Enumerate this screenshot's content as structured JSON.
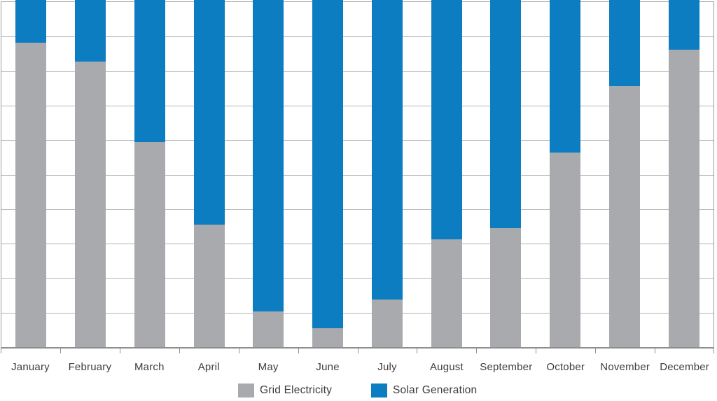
{
  "chart_data": {
    "type": "bar",
    "stacked": true,
    "percent_stacked": true,
    "title": "",
    "xlabel": "",
    "ylabel": "",
    "ylim": [
      0,
      100
    ],
    "grid_interval_percent": 10,
    "gridlines_visible": true,
    "y_axis_tick_labels_visible": false,
    "legend_position": "bottom",
    "categories": [
      "January",
      "February",
      "March",
      "April",
      "May",
      "June",
      "July",
      "August",
      "September",
      "October",
      "November",
      "December"
    ],
    "series": [
      {
        "name": "Grid Electricity",
        "color": "#a8aaad",
        "values": [
          87.8,
          82.3,
          59.0,
          35.2,
          10.2,
          5.5,
          13.8,
          31.1,
          34.3,
          56.0,
          75.2,
          85.6
        ]
      },
      {
        "name": "Solar Generation",
        "color": "#0d7dc2",
        "values": [
          12.2,
          17.7,
          41.0,
          64.8,
          89.8,
          94.5,
          86.2,
          68.9,
          65.7,
          44.0,
          24.8,
          14.4
        ]
      }
    ]
  },
  "colors": {
    "grid_series": "#a8aaad",
    "solar_series": "#0d7dc2",
    "gridline": "#b3b3b3",
    "plot_border": "#9c9c9c",
    "axis_line": "#8f8f8f",
    "label_text": "#3d3d3d",
    "background": "#ffffff"
  },
  "legend": {
    "items": [
      {
        "label": "Grid Electricity",
        "color": "#a8aaad"
      },
      {
        "label": "Solar Generation",
        "color": "#0d7dc2"
      }
    ]
  }
}
